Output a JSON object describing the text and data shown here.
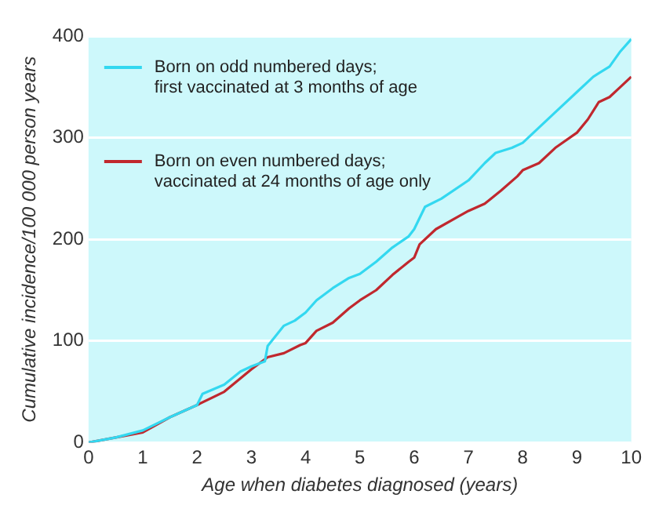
{
  "chart_data": {
    "type": "line",
    "xlabel": "Age when diabetes diagnosed (years)",
    "ylabel": "Cumulative incidence/100 000 person years",
    "xlim": [
      0,
      10
    ],
    "xticks": [
      0,
      1,
      2,
      3,
      4,
      5,
      6,
      7,
      8,
      9,
      10
    ],
    "ylim": [
      0,
      400
    ],
    "yticks": [
      0,
      100,
      200,
      300,
      400
    ],
    "grid": "y",
    "legend": "top left",
    "marker": "none",
    "line_style": "solid",
    "series": [
      {
        "name": "Born on odd numbered days; first vaccinated at 3 months of age",
        "color": "#33d8f0",
        "x": [
          0,
          0.5,
          1,
          1.5,
          2,
          2.1,
          2.5,
          2.8,
          3,
          3.25,
          3.3,
          3.6,
          3.8,
          4,
          4.2,
          4.5,
          4.8,
          5,
          5.3,
          5.6,
          5.9,
          6,
          6.2,
          6.5,
          7,
          7.3,
          7.5,
          7.8,
          8,
          8.3,
          8.6,
          9,
          9.3,
          9.6,
          9.8,
          10
        ],
        "values": [
          0,
          5,
          12,
          25,
          37,
          48,
          57,
          70,
          75,
          80,
          95,
          115,
          120,
          128,
          140,
          152,
          162,
          166,
          178,
          192,
          203,
          210,
          232,
          240,
          258,
          275,
          285,
          290,
          295,
          310,
          325,
          345,
          360,
          370,
          385,
          397
        ]
      },
      {
        "name": "Born on even numbered days; vaccinated at 24 months of age only",
        "color": "#c0282e",
        "x": [
          0,
          0.5,
          1,
          1.5,
          2,
          2.5,
          3,
          3.3,
          3.6,
          3.9,
          4,
          4.2,
          4.5,
          4.8,
          5,
          5.3,
          5.6,
          5.9,
          6,
          6.1,
          6.4,
          6.8,
          7,
          7.3,
          7.6,
          7.9,
          8,
          8.3,
          8.6,
          9,
          9.2,
          9.4,
          9.6,
          9.8,
          10
        ],
        "values": [
          0,
          5,
          10,
          25,
          37,
          50,
          72,
          84,
          88,
          96,
          98,
          110,
          118,
          132,
          140,
          150,
          165,
          178,
          182,
          195,
          210,
          222,
          228,
          235,
          248,
          262,
          268,
          275,
          290,
          305,
          318,
          335,
          340,
          350,
          360
        ]
      }
    ]
  }
}
